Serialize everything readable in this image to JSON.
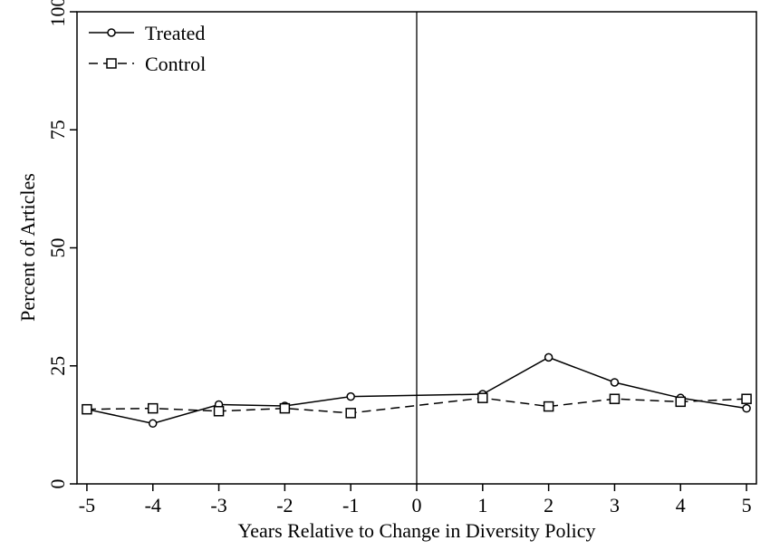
{
  "chart_data": {
    "type": "line",
    "title": "",
    "xlabel": "Years Relative to Change in Diversity Policy",
    "ylabel": "Percent of Articles",
    "xlim": [
      -5,
      5
    ],
    "ylim": [
      0,
      100
    ],
    "x_ticks": [
      "-5",
      "-4",
      "-3",
      "-2",
      "-1",
      "0",
      "1",
      "2",
      "3",
      "4",
      "5"
    ],
    "y_ticks": [
      "0",
      "25",
      "50",
      "75",
      "100"
    ],
    "vertical_reference_line": 0,
    "legend_position": "top-left",
    "grid": false,
    "series": [
      {
        "name": "Treated",
        "marker": "circle",
        "line_style": "solid",
        "x": [
          -5,
          -4,
          -3,
          -2,
          -1,
          1,
          2,
          3,
          4,
          5
        ],
        "y": [
          15.8,
          12.8,
          16.8,
          16.5,
          18.5,
          19.0,
          26.8,
          21.5,
          18.2,
          16.0
        ]
      },
      {
        "name": "Control",
        "marker": "square",
        "line_style": "dashed",
        "x": [
          -5,
          -4,
          -3,
          -2,
          -1,
          1,
          2,
          3,
          4,
          5
        ],
        "y": [
          15.8,
          16.0,
          15.4,
          16.0,
          15.0,
          18.2,
          16.4,
          18.0,
          17.4,
          18.0
        ]
      }
    ]
  }
}
